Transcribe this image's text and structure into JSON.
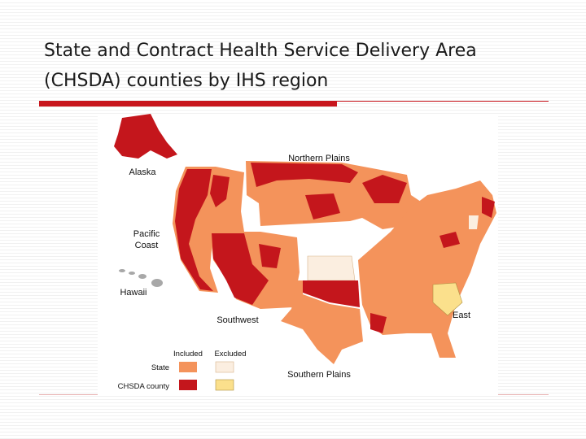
{
  "slide": {
    "title_lines": [
      "State and Contract Health Service Delivery Area",
      "(CHSDA) counties by IHS region"
    ]
  },
  "map": {
    "regions": [
      {
        "label_lines": [
          "Alaska"
        ]
      },
      {
        "label_lines": [
          "Northern Plains"
        ]
      },
      {
        "label_lines": [
          "Pacific",
          "Coast"
        ]
      },
      {
        "label_lines": [
          "Hawaii"
        ]
      },
      {
        "label_lines": [
          "Southwest"
        ]
      },
      {
        "label_lines": [
          "East"
        ]
      },
      {
        "label_lines": [
          "Southern Plains"
        ]
      }
    ],
    "legend": {
      "columns": [
        "Included",
        "Excluded"
      ],
      "rows": [
        "State",
        "CHSDA county"
      ]
    }
  }
}
